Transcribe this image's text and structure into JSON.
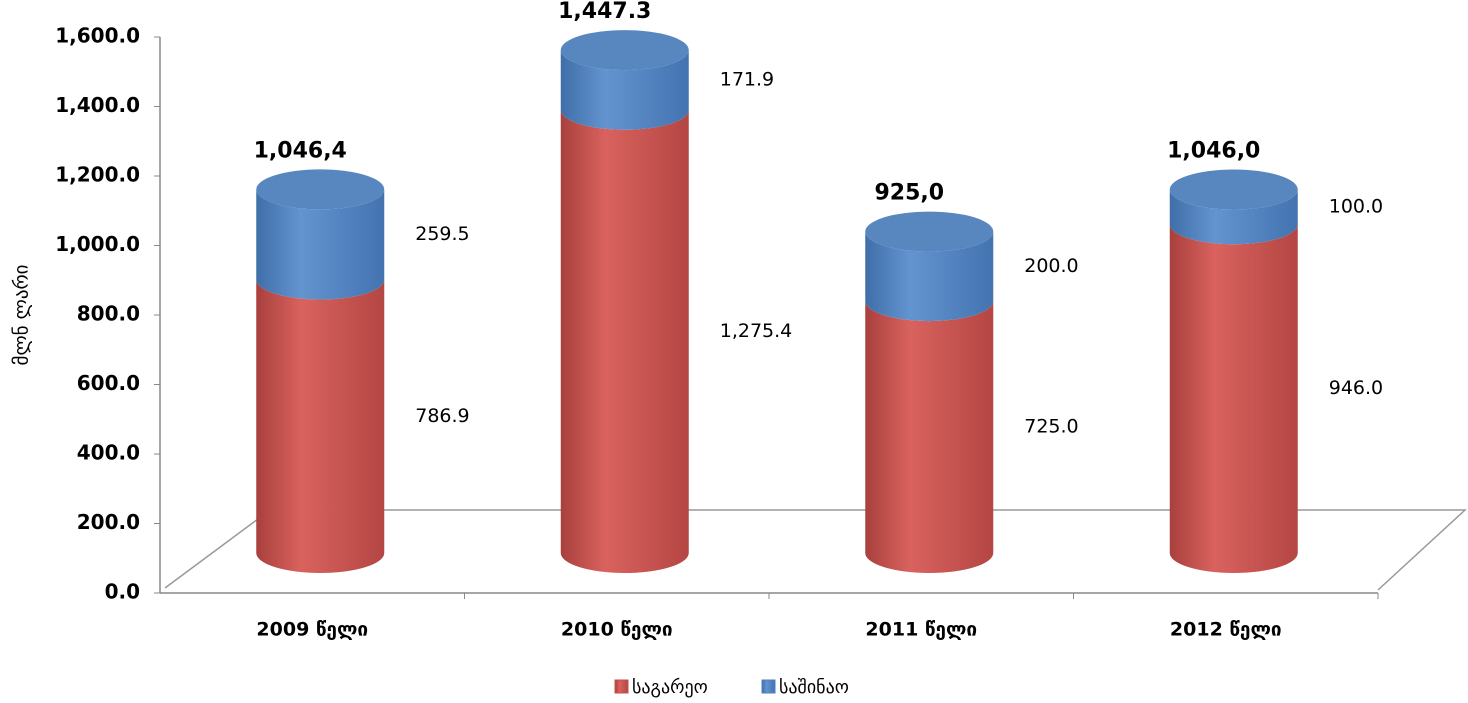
{
  "chart_data": {
    "type": "stacked_cylinder",
    "y_label": "მლნ ლარი",
    "categories": [
      "2009 წელი",
      "2010 წელი",
      "2011 წელი",
      "2012 წელი"
    ],
    "series": [
      {
        "name": "საგარეო",
        "color": "#c0504d",
        "values": [
          786.9,
          1275.4,
          725.0,
          946.0
        ],
        "value_labels": [
          "786.9",
          "1,275.4",
          "725.0",
          "946.0"
        ]
      },
      {
        "name": "საშინაო",
        "color": "#4f81bd",
        "values": [
          259.5,
          171.9,
          200.0,
          100.0
        ],
        "value_labels": [
          "259.5",
          "171.9",
          "200.0",
          "100.0"
        ]
      }
    ],
    "totals": [
      1046.4,
      1447.3,
      925.0,
      1046.0
    ],
    "total_labels": [
      "1,046,4",
      "1,447.3",
      "925,0",
      "1,046,0"
    ],
    "ylim": [
      0,
      1600
    ],
    "yticks": [
      {
        "value": 0,
        "label": "0.0"
      },
      {
        "value": 200,
        "label": "200.0"
      },
      {
        "value": 400,
        "label": "400.0"
      },
      {
        "value": 600,
        "label": "600.0"
      },
      {
        "value": 800,
        "label": "800.0"
      },
      {
        "value": 1000,
        "label": "1,000.0"
      },
      {
        "value": 1200,
        "label": "1,200.0"
      },
      {
        "value": 1400,
        "label": "1,400.0"
      },
      {
        "value": 1600,
        "label": "1,600.0"
      }
    ],
    "legend": "bottom"
  }
}
